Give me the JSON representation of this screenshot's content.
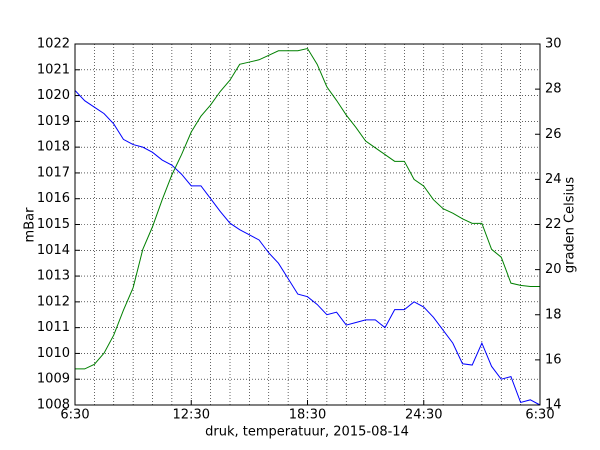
{
  "chart_data": {
    "type": "line",
    "xlabel": "druk, temperatuur, 2015-08-14",
    "ylabel": "mBar",
    "ylabel_color": "#0000ff",
    "y2label": "graden Celsius",
    "y2label_color": "#008000",
    "x": [
      6.5,
      7,
      7.5,
      8,
      8.5,
      9,
      9.5,
      10,
      10.5,
      11,
      11.5,
      12,
      12.5,
      13,
      13.5,
      14,
      14.5,
      15,
      15.5,
      16,
      16.5,
      17,
      17.5,
      18,
      18.5,
      19,
      19.5,
      20,
      20.5,
      21,
      21.5,
      22,
      22.5,
      23,
      23.5,
      24,
      24.5,
      25,
      25.5,
      26,
      26.5,
      27,
      27.5,
      28,
      28.5,
      29,
      29.5,
      30,
      30.5
    ],
    "xlim": [
      6.5,
      30.5
    ],
    "xticks": [
      {
        "value": 6.5,
        "label": "6:30"
      },
      {
        "value": 12.5,
        "label": "12:30"
      },
      {
        "value": 18.5,
        "label": "18:30"
      },
      {
        "value": 24.5,
        "label": "24:30"
      },
      {
        "value": 30.5,
        "label": "6:30"
      }
    ],
    "xminorticks": [
      7.5,
      8.5,
      9.5,
      10.5,
      11.5,
      13.5,
      14.5,
      15.5,
      16.5,
      17.5,
      19.5,
      20.5,
      21.5,
      22.5,
      23.5,
      25.5,
      26.5,
      27.5,
      28.5,
      29.5
    ],
    "ylim": [
      1008,
      1022
    ],
    "yticks": [
      1008,
      1009,
      1010,
      1011,
      1012,
      1013,
      1014,
      1015,
      1016,
      1017,
      1018,
      1019,
      1020,
      1021,
      1022
    ],
    "y2lim": [
      14,
      30
    ],
    "y2ticks": [
      14,
      16,
      18,
      20,
      22,
      24,
      26,
      28,
      30
    ],
    "grid": true,
    "series": [
      {
        "name": "druk",
        "color": "#0000ff",
        "axis": "y",
        "values": [
          1020.2,
          1019.8,
          1019.55,
          1019.3,
          1018.9,
          1018.3,
          1018.1,
          1018.0,
          1017.8,
          1017.5,
          1017.3,
          1016.95,
          1016.5,
          1016.5,
          1016.0,
          1015.5,
          1015.05,
          1014.8,
          1014.6,
          1014.4,
          1013.9,
          1013.5,
          1012.9,
          1012.3,
          1012.2,
          1011.9,
          1011.5,
          1011.6,
          1011.1,
          1011.2,
          1011.3,
          1011.3,
          1011.0,
          1011.7,
          1011.7,
          1012.0,
          1011.8,
          1011.4,
          1010.9,
          1010.4,
          1009.6,
          1009.55,
          1010.4,
          1009.5,
          1009.0,
          1009.1,
          1008.1,
          1008.2,
          1008.0
        ]
      },
      {
        "name": "temperatuur",
        "color": "#008000",
        "axis": "y2",
        "values": [
          15.6,
          15.6,
          15.8,
          16.3,
          17.1,
          18.2,
          19.2,
          20.9,
          21.9,
          23.1,
          24.2,
          25.1,
          26.1,
          26.8,
          27.3,
          27.9,
          28.4,
          29.1,
          29.2,
          29.3,
          29.5,
          29.7,
          29.7,
          29.7,
          29.8,
          29.1,
          28.1,
          27.5,
          26.85,
          26.3,
          25.7,
          25.4,
          25.1,
          24.8,
          24.8,
          24.0,
          23.7,
          23.1,
          22.7,
          22.5,
          22.25,
          22.05,
          22.05,
          20.9,
          20.55,
          19.4,
          19.3,
          19.25,
          19.25
        ]
      }
    ]
  }
}
